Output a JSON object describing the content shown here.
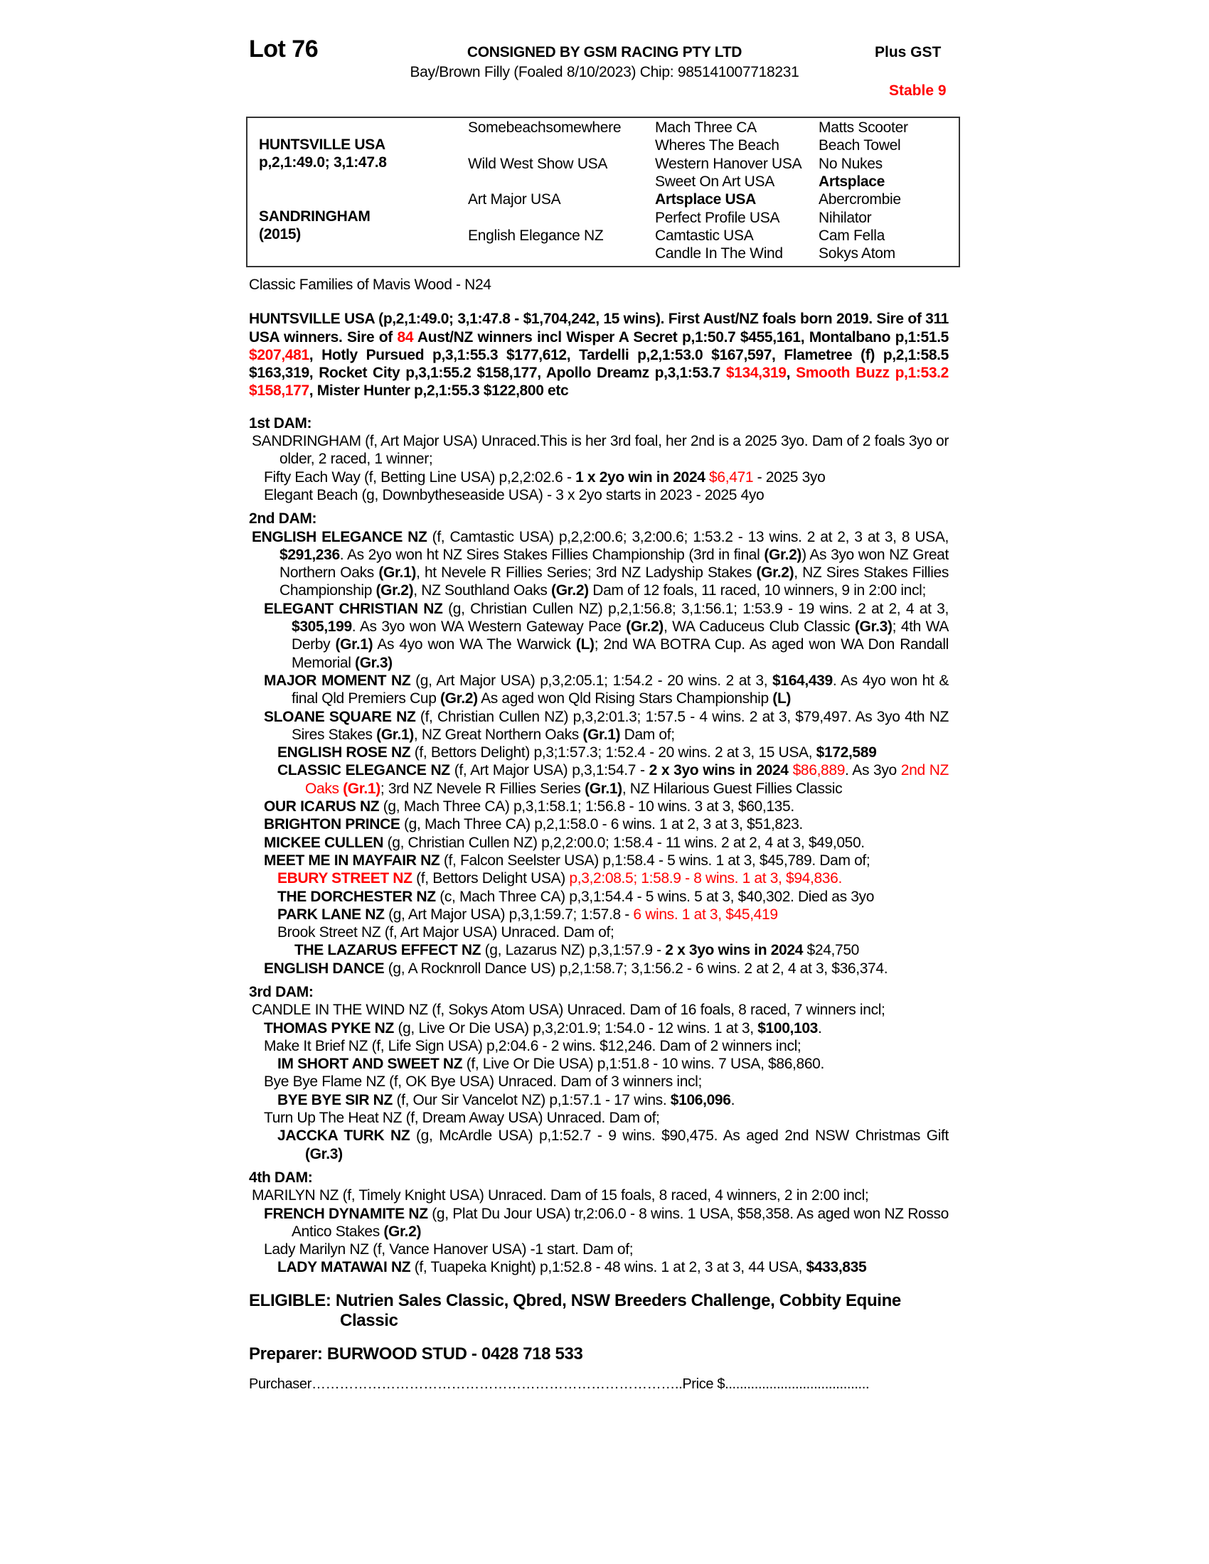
{
  "header": {
    "lot": "Lot 76",
    "consigned": "CONSIGNED BY GSM RACING PTY LTD",
    "gst": "Plus GST",
    "description": "Bay/Brown Filly (Foaled 8/10/2023) Chip: 985141007718231",
    "stable": "Stable 9"
  },
  "pedigree": {
    "sire": "HUNTSVILLE USA",
    "sire_record": "p,2,1:49.0; 3,1:47.8",
    "dam": "SANDRINGHAM",
    "dam_year": "(2015)",
    "gen2": [
      "Somebeachsomewhere",
      "Wild West Show USA",
      "Art Major USA",
      "English Elegance NZ"
    ],
    "gen3": [
      "Mach Three CA",
      "Wheres The Beach",
      "Western Hanover USA",
      "Sweet On Art USA",
      "Artsplace USA",
      "Perfect Profile USA",
      "Camtastic USA",
      "Candle In The Wind"
    ],
    "gen4": [
      "Matts Scooter",
      "Beach Towel",
      "No Nukes",
      "Artsplace",
      "Abercrombie",
      "Nihilator",
      "Cam Fella",
      "Sokys Atom"
    ],
    "bold_gen3": [
      4
    ],
    "bold_gen4": [
      3
    ]
  },
  "family": "Classic Families of Mavis Wood - N24",
  "sire_para": [
    {
      "t": "HUNTSVILLE USA (p,2,1:49.0; 3,1:47.8 - $1,704,242, 15 wins).  First Aust/NZ foals born 2019. Sire of 311 USA winners. Sire of ",
      "s": ""
    },
    {
      "t": "84",
      "s": "r"
    },
    {
      "t": " Aust/NZ winners incl Wisper A Secret p,1:50.7 $455,161, Montalbano p,1:51.5 ",
      "s": ""
    },
    {
      "t": "$207,481",
      "s": "r"
    },
    {
      "t": ", Hotly Pursued p,3,1:55.3 $177,612, Tardelli p,2,1:53.0 $167,597, Flametree (f) p,2,1:58.5 $163,319, Rocket City p,3,1:55.2 $158,177, Apollo Dreamz p,3,1:53.7 ",
      "s": ""
    },
    {
      "t": "$134,319",
      "s": "r"
    },
    {
      "t": ", ",
      "s": ""
    },
    {
      "t": "Smooth Buzz p,1:53.2 $158,177",
      "s": "r"
    },
    {
      "t": ", Mister Hunter p,2,1:55.3 $122,800 etc",
      "s": ""
    }
  ],
  "sections": [
    {
      "heading": "1st DAM:",
      "entries": [
        {
          "lvl": 0,
          "segs": [
            {
              "t": "SANDRINGHAM (f, Art Major USA) Unraced.This is her 3rd foal, her 2nd is a 2025 3yo. Dam of 2 foals 3yo or older, 2 raced, 1 winner;",
              "s": ""
            }
          ]
        },
        {
          "lvl": 1,
          "segs": [
            {
              "t": "Fifty Each Way (f, Betting Line USA) p,2,2:02.6 - ",
              "s": ""
            },
            {
              "t": "1 x 2yo win in 2024",
              "s": "b"
            },
            {
              "t": " ",
              "s": ""
            },
            {
              "t": "$6,471",
              "s": "r"
            },
            {
              "t": " - 2025 3yo",
              "s": ""
            }
          ]
        },
        {
          "lvl": 1,
          "segs": [
            {
              "t": "Elegant Beach (g, Downbytheseaside USA) - 3 x 2yo starts in 2023 - 2025 4yo",
              "s": ""
            }
          ]
        }
      ]
    },
    {
      "heading": "2nd DAM:",
      "entries": [
        {
          "lvl": 0,
          "segs": [
            {
              "t": "ENGLISH ELEGANCE NZ",
              "s": "b"
            },
            {
              "t": " (f, Camtastic USA) p,2,2:00.6; 3,2:00.6; 1:53.2 - 13 wins. 2 at 2, 3 at 3, 8 USA, ",
              "s": ""
            },
            {
              "t": "$291,236",
              "s": "b"
            },
            {
              "t": ". As 2yo won ht NZ Sires Stakes Fillies Championship (3rd in final ",
              "s": ""
            },
            {
              "t": "(Gr.2)",
              "s": "b"
            },
            {
              "t": ") As 3yo won NZ Great Northern Oaks ",
              "s": ""
            },
            {
              "t": "(Gr.1)",
              "s": "b"
            },
            {
              "t": ", ht Nevele R Fillies Series; 3rd NZ Ladyship Stakes ",
              "s": ""
            },
            {
              "t": "(Gr.2)",
              "s": "b"
            },
            {
              "t": ", NZ Sires Stakes Fillies Championship ",
              "s": ""
            },
            {
              "t": "(Gr.2)",
              "s": "b"
            },
            {
              "t": ", NZ Southland Oaks ",
              "s": ""
            },
            {
              "t": "(Gr.2)",
              "s": "b"
            },
            {
              "t": " Dam of 12 foals, 11 raced, 10 winners, 9 in 2:00 incl;",
              "s": ""
            }
          ]
        },
        {
          "lvl": 1,
          "segs": [
            {
              "t": "ELEGANT CHRISTIAN NZ",
              "s": "b"
            },
            {
              "t": " (g, Christian Cullen NZ) p,2,1:56.8; 3,1:56.1; 1:53.9 - 19 wins. 2 at 2, 4 at 3, ",
              "s": ""
            },
            {
              "t": "$305,199",
              "s": "b"
            },
            {
              "t": ". As 3yo won WA Western Gateway Pace ",
              "s": ""
            },
            {
              "t": "(Gr.2)",
              "s": "b"
            },
            {
              "t": ", WA Caduceus Club Classic ",
              "s": ""
            },
            {
              "t": "(Gr.3)",
              "s": "b"
            },
            {
              "t": "; 4th WA Derby ",
              "s": ""
            },
            {
              "t": "(Gr.1)",
              "s": "b"
            },
            {
              "t": " As 4yo won WA The Warwick ",
              "s": ""
            },
            {
              "t": "(L)",
              "s": "b"
            },
            {
              "t": "; 2nd WA BOTRA Cup. As aged won WA Don Randall Memorial ",
              "s": ""
            },
            {
              "t": "(Gr.3)",
              "s": "b"
            }
          ]
        },
        {
          "lvl": 1,
          "segs": [
            {
              "t": "MAJOR MOMENT NZ",
              "s": "b"
            },
            {
              "t": " (g, Art Major USA) p,3,2:05.1; 1:54.2 - 20 wins. 2 at 3, ",
              "s": ""
            },
            {
              "t": "$164,439",
              "s": "b"
            },
            {
              "t": ". As 4yo won ht & final Qld Premiers Cup ",
              "s": ""
            },
            {
              "t": "(Gr.2)",
              "s": "b"
            },
            {
              "t": " As aged won Qld Rising Stars Championship ",
              "s": ""
            },
            {
              "t": "(L)",
              "s": "b"
            }
          ]
        },
        {
          "lvl": 1,
          "segs": [
            {
              "t": "SLOANE SQUARE NZ",
              "s": "b"
            },
            {
              "t": " (f, Christian Cullen NZ) p,3,2:01.3; 1:57.5 - 4 wins. 2 at 3, $79,497. As 3yo 4th NZ Sires Stakes ",
              "s": ""
            },
            {
              "t": "(Gr.1)",
              "s": "b"
            },
            {
              "t": ", NZ Great Northern Oaks ",
              "s": ""
            },
            {
              "t": "(Gr.1)",
              "s": "b"
            },
            {
              "t": " Dam of;",
              "s": ""
            }
          ]
        },
        {
          "lvl": 2,
          "segs": [
            {
              "t": "ENGLISH ROSE NZ",
              "s": "b"
            },
            {
              "t": " (f, Bettors Delight) p,3;1:57.3; 1:52.4 - 20 wins. 2 at 3, 15 USA, ",
              "s": ""
            },
            {
              "t": "$172,589",
              "s": "b"
            }
          ]
        },
        {
          "lvl": 2,
          "segs": [
            {
              "t": "CLASSIC ELEGANCE NZ",
              "s": "b"
            },
            {
              "t": " (f, Art Major USA) p,3,1:54.7 - ",
              "s": ""
            },
            {
              "t": "2 x 3yo wins in 2024",
              "s": "b"
            },
            {
              "t": " ",
              "s": ""
            },
            {
              "t": "$86,889",
              "s": "r"
            },
            {
              "t": ". As 3yo ",
              "s": ""
            },
            {
              "t": "2nd NZ Oaks ",
              "s": "r"
            },
            {
              "t": "(Gr.1)",
              "s": "br"
            },
            {
              "t": "; 3rd NZ Nevele R Fillies Series ",
              "s": ""
            },
            {
              "t": "(Gr.1)",
              "s": "b"
            },
            {
              "t": ", NZ Hilarious Guest Fillies Classic",
              "s": ""
            }
          ]
        },
        {
          "lvl": 1,
          "segs": [
            {
              "t": "OUR ICARUS NZ",
              "s": "b"
            },
            {
              "t": " (g, Mach Three CA) p,3,1:58.1; 1:56.8 - 10 wins. 3 at 3, $60,135.",
              "s": ""
            }
          ]
        },
        {
          "lvl": 1,
          "segs": [
            {
              "t": "BRIGHTON PRINCE",
              "s": "b"
            },
            {
              "t": " (g, Mach Three CA) p,2,1:58.0 - 6 wins. 1 at 2, 3 at 3, $51,823.",
              "s": ""
            }
          ]
        },
        {
          "lvl": 1,
          "segs": [
            {
              "t": "MICKEE CULLEN",
              "s": "b"
            },
            {
              "t": " (g, Christian Cullen NZ) p,2,2:00.0; 1:58.4 - 11 wins. 2 at 2, 4 at 3, $49,050.",
              "s": ""
            }
          ]
        },
        {
          "lvl": 1,
          "segs": [
            {
              "t": "MEET ME IN MAYFAIR NZ",
              "s": "b"
            },
            {
              "t": " (f, Falcon Seelster USA) p,1:58.4 - 5 wins. 1 at 3, $45,789. Dam of;",
              "s": ""
            }
          ]
        },
        {
          "lvl": 2,
          "segs": [
            {
              "t": "EBURY STREET NZ",
              "s": "br"
            },
            {
              "t": " (f, Bettors Delight USA) ",
              "s": ""
            },
            {
              "t": "p,3,2:08.5; 1:58.9 - 8 wins. 1 at 3, $94,836.",
              "s": "r"
            }
          ]
        },
        {
          "lvl": 2,
          "segs": [
            {
              "t": "THE DORCHESTER NZ",
              "s": "b"
            },
            {
              "t": " (c, Mach Three CA) p,3,1:54.4 - 5 wins. 5 at 3, $40,302. Died as 3yo",
              "s": ""
            }
          ]
        },
        {
          "lvl": 2,
          "segs": [
            {
              "t": "PARK LANE NZ",
              "s": "b"
            },
            {
              "t": " (g, Art Major USA) p,3,1:59.7; 1:57.8 - ",
              "s": ""
            },
            {
              "t": "6 wins. 1 at 3, $45,419",
              "s": "r"
            }
          ]
        },
        {
          "lvl": 2,
          "segs": [
            {
              "t": "Brook Street NZ (f, Art Major USA) Unraced. Dam of;",
              "s": ""
            }
          ]
        },
        {
          "lvl": 3,
          "segs": [
            {
              "t": "THE LAZARUS EFFECT NZ",
              "s": "b"
            },
            {
              "t": " (g, Lazarus NZ) p,3,1:57.9 - ",
              "s": ""
            },
            {
              "t": "2 x 3yo wins in 2024",
              "s": "b"
            },
            {
              "t": " $24,750",
              "s": ""
            }
          ]
        },
        {
          "lvl": 1,
          "segs": [
            {
              "t": "ENGLISH DANCE",
              "s": "b"
            },
            {
              "t": " (g, A Rocknroll Dance US) p,2,1:58.7; 3,1:56.2 - 6 wins. 2 at 2, 4 at 3, $36,374.",
              "s": ""
            }
          ]
        }
      ]
    },
    {
      "heading": "3rd DAM:",
      "entries": [
        {
          "lvl": 0,
          "segs": [
            {
              "t": "CANDLE IN THE WIND NZ (f, Sokys Atom USA) Unraced. Dam of 16 foals, 8 raced, 7 winners incl;",
              "s": ""
            }
          ]
        },
        {
          "lvl": 1,
          "segs": [
            {
              "t": "THOMAS PYKE NZ",
              "s": "b"
            },
            {
              "t": " (g, Live Or Die USA) p,3,2:01.9; 1:54.0 - 12 wins. 1 at 3, ",
              "s": ""
            },
            {
              "t": "$100,103",
              "s": "b"
            },
            {
              "t": ".",
              "s": ""
            }
          ]
        },
        {
          "lvl": 1,
          "segs": [
            {
              "t": "Make It Brief NZ (f, Life Sign USA) p,2:04.6 - 2 wins. $12,246. Dam of 2 winners incl;",
              "s": ""
            }
          ]
        },
        {
          "lvl": 2,
          "segs": [
            {
              "t": "IM SHORT AND SWEET NZ",
              "s": "b"
            },
            {
              "t": " (f, Live Or Die USA) p,1:51.8 - 10 wins. 7 USA, $86,860.",
              "s": ""
            }
          ]
        },
        {
          "lvl": 1,
          "segs": [
            {
              "t": "Bye Bye Flame NZ (f, OK Bye USA) Unraced. Dam of 3 winners incl;",
              "s": ""
            }
          ]
        },
        {
          "lvl": 2,
          "segs": [
            {
              "t": "BYE BYE SIR NZ",
              "s": "b"
            },
            {
              "t": " (f, Our Sir Vancelot NZ) p,1:57.1 - 17 wins. ",
              "s": ""
            },
            {
              "t": "$106,096",
              "s": "b"
            },
            {
              "t": ".",
              "s": ""
            }
          ]
        },
        {
          "lvl": 1,
          "segs": [
            {
              "t": "Turn Up The Heat NZ (f, Dream Away USA) Unraced. Dam of;",
              "s": ""
            }
          ]
        },
        {
          "lvl": 2,
          "segs": [
            {
              "t": "JACCKA TURK NZ",
              "s": "b"
            },
            {
              "t": " (g, McArdle USA) p,1:52.7 - 9 wins. $90,475. As aged 2nd NSW Christmas Gift ",
              "s": ""
            },
            {
              "t": "(Gr.3)",
              "s": "b"
            }
          ]
        }
      ]
    },
    {
      "heading": "4th DAM:",
      "entries": [
        {
          "lvl": 0,
          "segs": [
            {
              "t": "MARILYN NZ (f, Timely Knight USA) Unraced. Dam of 15 foals, 8 raced, 4 winners, 2 in 2:00 incl;",
              "s": ""
            }
          ]
        },
        {
          "lvl": 1,
          "segs": [
            {
              "t": "FRENCH DYNAMITE NZ",
              "s": "b"
            },
            {
              "t": " (g, Plat Du Jour USA) tr,2:06.0 - 8 wins. 1 USA, $58,358. As aged won NZ Rosso Antico Stakes ",
              "s": ""
            },
            {
              "t": "(Gr.2)",
              "s": "b"
            }
          ]
        },
        {
          "lvl": 1,
          "segs": [
            {
              "t": "Lady Marilyn NZ (f, Vance Hanover USA) -1 start. Dam of;",
              "s": ""
            }
          ]
        },
        {
          "lvl": 2,
          "segs": [
            {
              "t": "LADY MATAWAI NZ",
              "s": "b"
            },
            {
              "t": " (f, Tuapeka Knight) p,1:52.8 - 48 wins. 1 at 2, 3 at 3, 44 USA, ",
              "s": ""
            },
            {
              "t": "$433,835",
              "s": "b"
            }
          ]
        }
      ]
    }
  ],
  "eligible": "ELIGIBLE: Nutrien Sales Classic, Qbred, NSW Breeders Challenge, Cobbity Equine Classic",
  "preparer": "Preparer: BURWOOD STUD - 0428 718 533",
  "purchaser": "Purchaser……………………………………………………………………..Price $.......................................",
  "colors": {
    "highlight": "#ff0000",
    "text": "#000000"
  }
}
